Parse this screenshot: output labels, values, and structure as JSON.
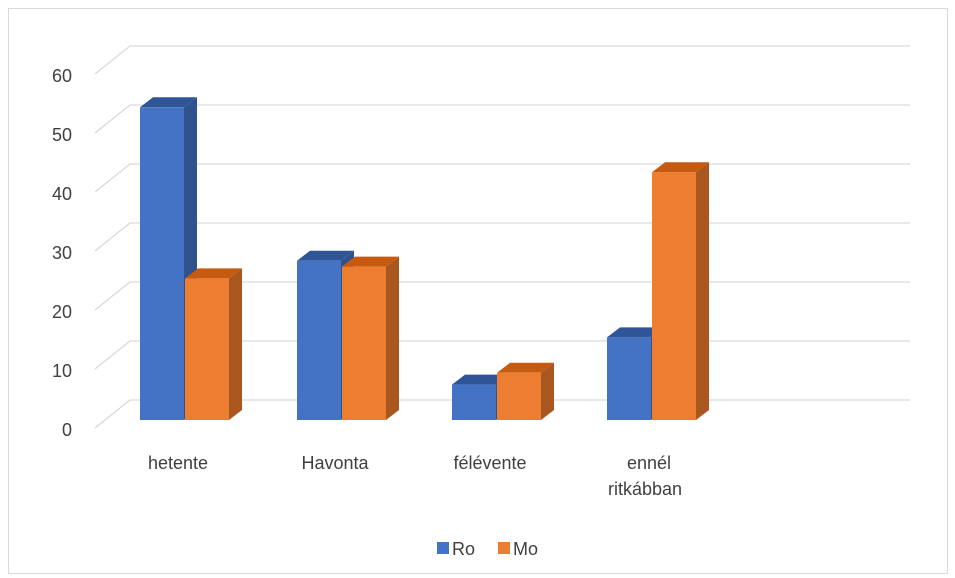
{
  "chart_data": {
    "type": "bar",
    "categories": [
      "hetente",
      "Havonta",
      "félévente",
      "ennél ritkábban"
    ],
    "series": [
      {
        "name": "Ro",
        "values": [
          53,
          27,
          6,
          14
        ],
        "color": "#4472c4",
        "side_color": "#2f528f",
        "top_color": "#2f5597"
      },
      {
        "name": "Mo",
        "values": [
          24,
          26,
          8,
          42
        ],
        "color": "#ed7d31",
        "side_color": "#a9561f",
        "top_color": "#c55a11"
      }
    ],
    "title": "",
    "xlabel": "",
    "ylabel": "",
    "ylim": [
      0,
      60
    ],
    "yticks": [
      "0",
      "10",
      "20",
      "30",
      "40",
      "50",
      "60"
    ],
    "grid": true,
    "legend_position": "bottom",
    "style": "3d-clustered-column"
  }
}
